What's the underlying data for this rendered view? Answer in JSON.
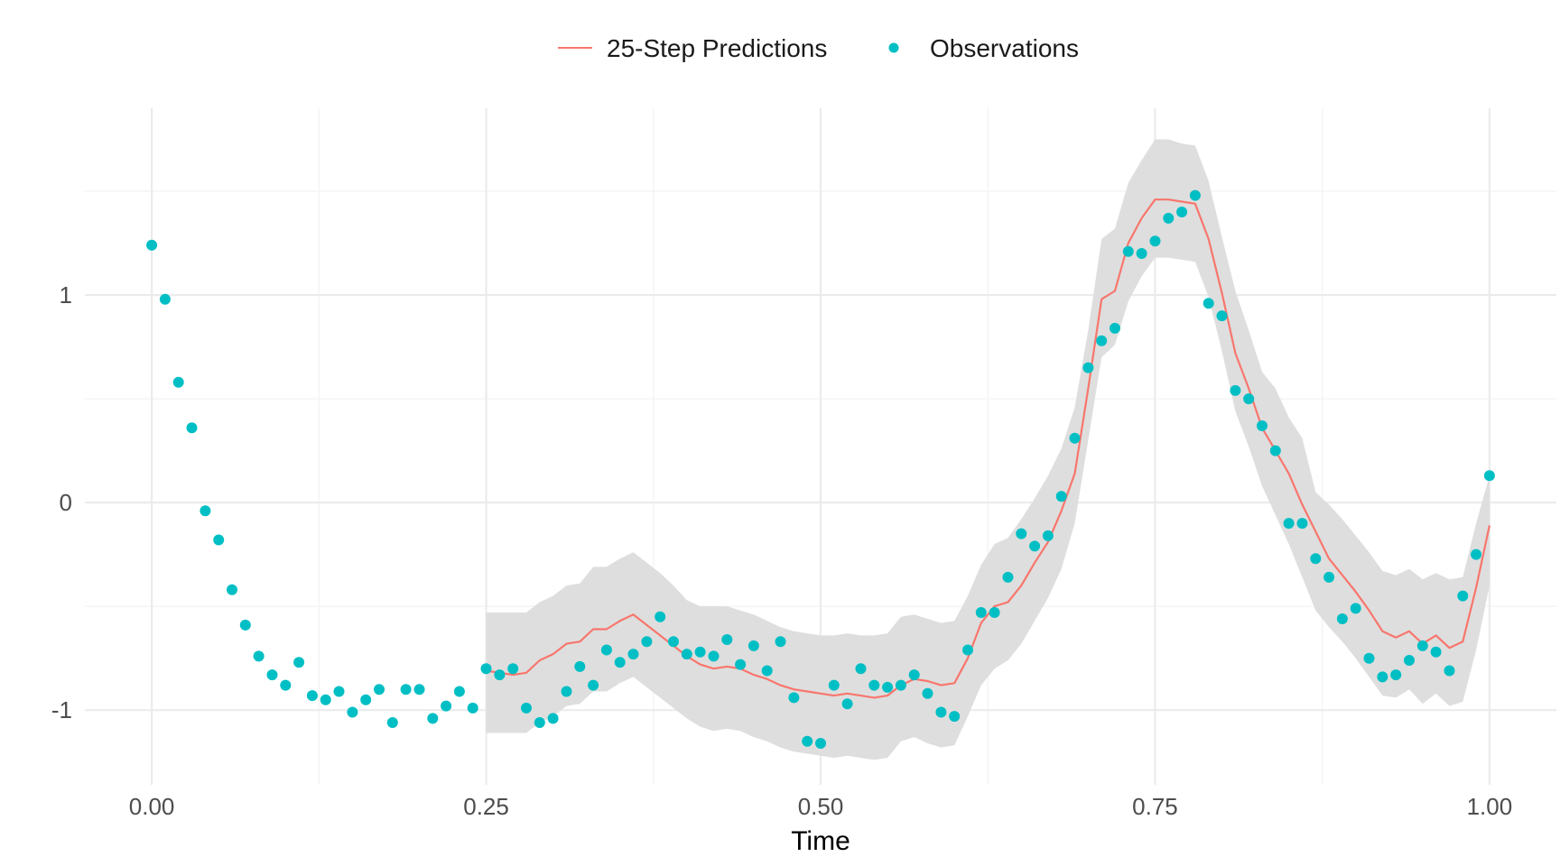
{
  "chart_data": {
    "type": "line",
    "title": "",
    "xlabel": "Time",
    "ylabel": "",
    "xlim": [
      -0.05,
      1.05
    ],
    "ylim": [
      -1.36,
      1.9
    ],
    "x_ticks": [
      0,
      0.25,
      0.5,
      0.75,
      1
    ],
    "x_tick_labels": [
      "0.00",
      "0.25",
      "0.50",
      "0.75",
      "1.00"
    ],
    "y_ticks": [
      -1,
      0,
      1
    ],
    "y_tick_labels": [
      "-1",
      "0",
      "1"
    ],
    "y_minor_gridlines": [
      -0.5,
      0.5,
      1.5
    ],
    "x_minor_gridlines": [
      0.125,
      0.375,
      0.625,
      0.875
    ],
    "grid": true,
    "legend_position": "top",
    "colors": {
      "predictions": "#F8766D",
      "observations": "#00BFC4",
      "ribbon": "#dedede",
      "grid_major": "#ebebeb",
      "grid_minor": "#f5f5f5"
    },
    "legend": [
      {
        "label": "25-Step Predictions",
        "kind": "line",
        "color_key": "predictions"
      },
      {
        "label": "Observations",
        "kind": "point",
        "color_key": "observations"
      }
    ],
    "series": [
      {
        "name": "25-Step Predictions",
        "kind": "line",
        "x": [
          0.25,
          0.26,
          0.27,
          0.28,
          0.29,
          0.3,
          0.31,
          0.32,
          0.33,
          0.34,
          0.35,
          0.36,
          0.37,
          0.38,
          0.39,
          0.4,
          0.41,
          0.42,
          0.43,
          0.44,
          0.45,
          0.46,
          0.47,
          0.48,
          0.49,
          0.5,
          0.51,
          0.52,
          0.53,
          0.54,
          0.55,
          0.56,
          0.57,
          0.58,
          0.59,
          0.6,
          0.61,
          0.62,
          0.63,
          0.64,
          0.65,
          0.66,
          0.67,
          0.68,
          0.69,
          0.7,
          0.71,
          0.72,
          0.73,
          0.74,
          0.75,
          0.76,
          0.77,
          0.78,
          0.79,
          0.8,
          0.81,
          0.82,
          0.83,
          0.84,
          0.85,
          0.86,
          0.87,
          0.88,
          0.89,
          0.9,
          0.91,
          0.92,
          0.93,
          0.94,
          0.95,
          0.96,
          0.97,
          0.98,
          0.99,
          1.0
        ],
        "y": [
          -0.81,
          -0.82,
          -0.83,
          -0.82,
          -0.76,
          -0.73,
          -0.68,
          -0.67,
          -0.61,
          -0.61,
          -0.57,
          -0.54,
          -0.59,
          -0.64,
          -0.69,
          -0.74,
          -0.78,
          -0.8,
          -0.79,
          -0.8,
          -0.83,
          -0.85,
          -0.88,
          -0.9,
          -0.91,
          -0.92,
          -0.93,
          -0.92,
          -0.93,
          -0.94,
          -0.93,
          -0.88,
          -0.85,
          -0.86,
          -0.88,
          -0.87,
          -0.75,
          -0.58,
          -0.5,
          -0.48,
          -0.4,
          -0.29,
          -0.19,
          -0.04,
          0.14,
          0.55,
          0.98,
          1.02,
          1.25,
          1.37,
          1.46,
          1.46,
          1.45,
          1.44,
          1.27,
          1.01,
          0.72,
          0.55,
          0.36,
          0.25,
          0.14,
          -0.01,
          -0.14,
          -0.27,
          -0.35,
          -0.43,
          -0.52,
          -0.62,
          -0.65,
          -0.62,
          -0.68,
          -0.64,
          -0.7,
          -0.67,
          -0.41,
          -0.11
        ]
      },
      {
        "name": "Prediction interval",
        "kind": "ribbon",
        "x": [
          0.25,
          0.26,
          0.27,
          0.28,
          0.29,
          0.3,
          0.31,
          0.32,
          0.33,
          0.34,
          0.35,
          0.36,
          0.37,
          0.38,
          0.39,
          0.4,
          0.41,
          0.42,
          0.43,
          0.44,
          0.45,
          0.46,
          0.47,
          0.48,
          0.49,
          0.5,
          0.51,
          0.52,
          0.53,
          0.54,
          0.55,
          0.56,
          0.57,
          0.58,
          0.59,
          0.6,
          0.61,
          0.62,
          0.63,
          0.64,
          0.65,
          0.66,
          0.67,
          0.68,
          0.69,
          0.7,
          0.71,
          0.72,
          0.73,
          0.74,
          0.75,
          0.76,
          0.77,
          0.78,
          0.79,
          0.8,
          0.81,
          0.82,
          0.83,
          0.84,
          0.85,
          0.86,
          0.87,
          0.88,
          0.89,
          0.9,
          0.91,
          0.92,
          0.93,
          0.94,
          0.95,
          0.96,
          0.97,
          0.98,
          0.99,
          1.0
        ],
        "lower": [
          -1.11,
          -1.11,
          -1.11,
          -1.11,
          -1.06,
          -1.03,
          -0.98,
          -0.97,
          -0.91,
          -0.91,
          -0.87,
          -0.84,
          -0.89,
          -0.94,
          -0.99,
          -1.04,
          -1.08,
          -1.1,
          -1.09,
          -1.1,
          -1.13,
          -1.15,
          -1.18,
          -1.2,
          -1.21,
          -1.22,
          -1.23,
          -1.22,
          -1.23,
          -1.24,
          -1.23,
          -1.15,
          -1.13,
          -1.16,
          -1.18,
          -1.17,
          -1.03,
          -0.88,
          -0.8,
          -0.76,
          -0.68,
          -0.57,
          -0.46,
          -0.32,
          -0.1,
          0.3,
          0.7,
          0.76,
          0.97,
          1.09,
          1.18,
          1.18,
          1.17,
          1.16,
          0.99,
          0.73,
          0.44,
          0.27,
          0.08,
          -0.06,
          -0.2,
          -0.36,
          -0.52,
          -0.6,
          -0.67,
          -0.75,
          -0.84,
          -0.93,
          -0.94,
          -0.9,
          -0.97,
          -0.92,
          -0.98,
          -0.96,
          -0.71,
          -0.4
        ],
        "upper": [
          -0.53,
          -0.53,
          -0.53,
          -0.53,
          -0.48,
          -0.45,
          -0.4,
          -0.39,
          -0.31,
          -0.31,
          -0.27,
          -0.24,
          -0.29,
          -0.34,
          -0.4,
          -0.47,
          -0.5,
          -0.5,
          -0.5,
          -0.52,
          -0.54,
          -0.57,
          -0.6,
          -0.62,
          -0.63,
          -0.64,
          -0.64,
          -0.63,
          -0.64,
          -0.64,
          -0.63,
          -0.55,
          -0.54,
          -0.56,
          -0.58,
          -0.57,
          -0.45,
          -0.3,
          -0.2,
          -0.17,
          -0.08,
          0.02,
          0.13,
          0.26,
          0.46,
          0.83,
          1.27,
          1.32,
          1.54,
          1.65,
          1.75,
          1.75,
          1.73,
          1.72,
          1.55,
          1.28,
          1.02,
          0.83,
          0.63,
          0.55,
          0.41,
          0.31,
          0.05,
          -0.01,
          -0.08,
          -0.16,
          -0.24,
          -0.33,
          -0.35,
          -0.32,
          -0.37,
          -0.34,
          -0.37,
          -0.36,
          -0.1,
          0.13
        ]
      },
      {
        "name": "Observations",
        "kind": "scatter",
        "x": [
          0.0,
          0.01,
          0.02,
          0.03,
          0.04,
          0.05,
          0.06,
          0.07,
          0.08,
          0.09,
          0.1,
          0.11,
          0.12,
          0.13,
          0.14,
          0.15,
          0.16,
          0.17,
          0.18,
          0.19,
          0.2,
          0.21,
          0.22,
          0.23,
          0.24,
          0.25,
          0.26,
          0.27,
          0.28,
          0.29,
          0.3,
          0.31,
          0.32,
          0.33,
          0.34,
          0.35,
          0.36,
          0.37,
          0.38,
          0.39,
          0.4,
          0.41,
          0.42,
          0.43,
          0.44,
          0.45,
          0.46,
          0.47,
          0.48,
          0.49,
          0.5,
          0.51,
          0.52,
          0.53,
          0.54,
          0.55,
          0.56,
          0.57,
          0.58,
          0.59,
          0.6,
          0.61,
          0.62,
          0.63,
          0.64,
          0.65,
          0.66,
          0.67,
          0.68,
          0.69,
          0.7,
          0.71,
          0.72,
          0.73,
          0.74,
          0.75,
          0.76,
          0.77,
          0.78,
          0.79,
          0.8,
          0.81,
          0.82,
          0.83,
          0.84,
          0.85,
          0.86,
          0.87,
          0.88,
          0.89,
          0.9,
          0.91,
          0.92,
          0.93,
          0.94,
          0.95,
          0.96,
          0.97,
          0.98,
          0.99,
          1.0
        ],
        "y": [
          1.24,
          0.98,
          0.58,
          0.36,
          -0.04,
          -0.18,
          -0.42,
          -0.59,
          -0.74,
          -0.83,
          -0.88,
          -0.77,
          -0.93,
          -0.95,
          -0.91,
          -1.01,
          -0.95,
          -0.9,
          -1.06,
          -0.9,
          -0.9,
          -1.04,
          -0.98,
          -0.91,
          -0.99,
          -0.8,
          -0.83,
          -0.8,
          -0.99,
          -1.06,
          -1.04,
          -0.91,
          -0.79,
          -0.88,
          -0.71,
          -0.77,
          -0.73,
          -0.67,
          -0.55,
          -0.67,
          -0.73,
          -0.72,
          -0.74,
          -0.66,
          -0.78,
          -0.69,
          -0.81,
          -0.67,
          -0.94,
          -1.15,
          -1.16,
          -0.88,
          -0.97,
          -0.8,
          -0.88,
          -0.89,
          -0.88,
          -0.83,
          -0.92,
          -1.01,
          -1.03,
          -0.71,
          -0.53,
          -0.53,
          -0.36,
          -0.15,
          -0.21,
          -0.16,
          0.03,
          0.31,
          0.65,
          0.78,
          0.84,
          1.21,
          1.2,
          1.26,
          1.37,
          1.4,
          1.48,
          0.96,
          0.9,
          0.54,
          0.5,
          0.37,
          0.25,
          -0.1,
          -0.1,
          -0.27,
          -0.36,
          -0.56,
          -0.51,
          -0.75,
          -0.84,
          -0.83,
          -0.76,
          -0.69,
          -0.72,
          -0.81,
          -0.45,
          -0.25,
          0.13
        ]
      }
    ]
  }
}
